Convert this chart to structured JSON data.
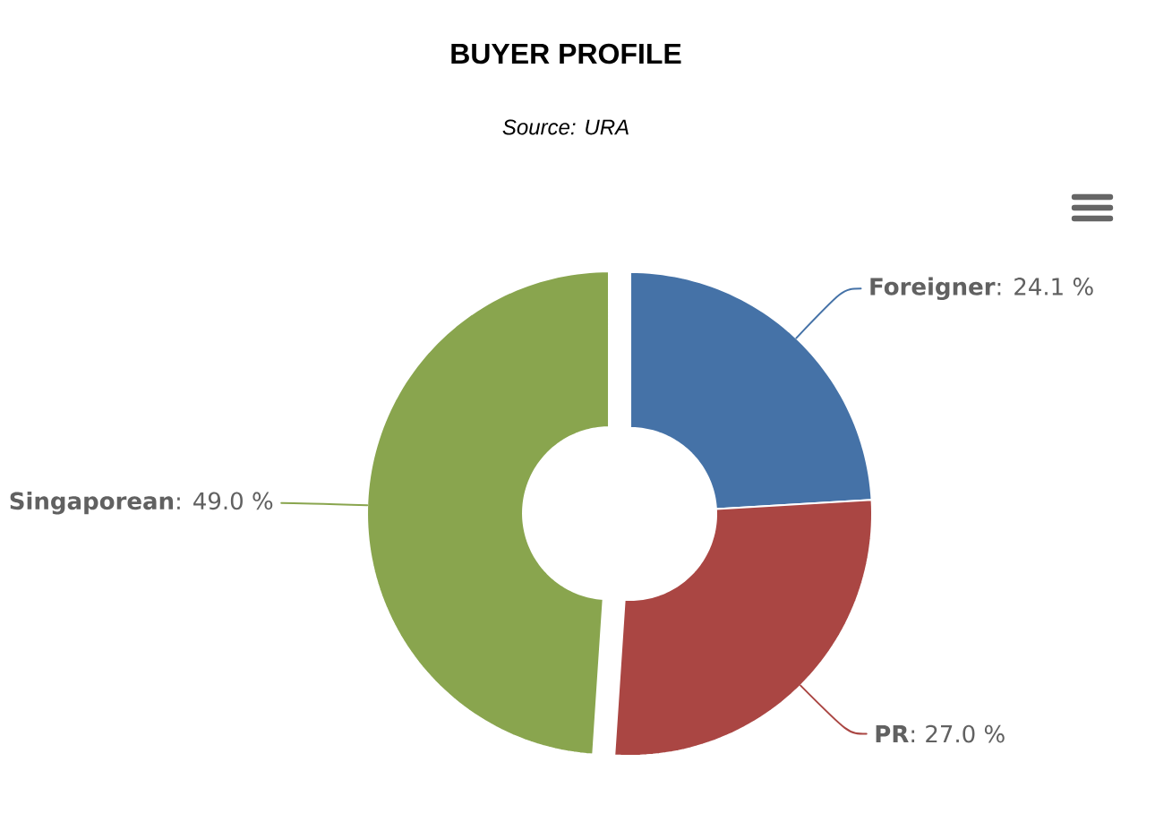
{
  "chart_data": {
    "type": "donut",
    "title": "BUYER PROFILE",
    "annotations": [
      "Source: URA"
    ],
    "categories": [
      "Foreigner",
      "PR",
      "Singaporean"
    ],
    "values": [
      24.1,
      27.0,
      49.0
    ],
    "colors": [
      "#4572a7",
      "#aa4643",
      "#89a54e"
    ],
    "value_labels": [
      ": 24.1 %",
      ": 27.0 %",
      ": 49.0 %"
    ]
  }
}
